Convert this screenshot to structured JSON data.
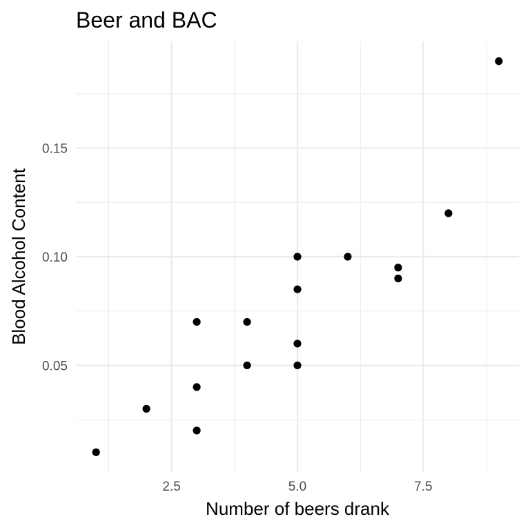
{
  "chart_data": {
    "type": "scatter",
    "title": "Beer and BAC",
    "xlabel": "Number of beers drank",
    "ylabel": "Blood Alcohol Content",
    "xlim": [
      0.6,
      9.4
    ],
    "ylim": [
      0.0009,
      0.1991
    ],
    "x_ticks": [
      2.5,
      5.0,
      7.5
    ],
    "x_tick_labels": [
      "2.5",
      "5.0",
      "7.5"
    ],
    "x_minor_ticks": [
      1.25,
      3.75,
      6.25,
      8.75
    ],
    "y_ticks": [
      0.05,
      0.1,
      0.15
    ],
    "y_tick_labels": [
      "0.05",
      "0.10",
      "0.15"
    ],
    "y_minor_ticks": [
      0.025,
      0.075,
      0.125,
      0.175
    ],
    "grid": true,
    "point_color": "#000000",
    "points": [
      {
        "x": 1,
        "y": 0.01
      },
      {
        "x": 2,
        "y": 0.03
      },
      {
        "x": 3,
        "y": 0.02
      },
      {
        "x": 3,
        "y": 0.04
      },
      {
        "x": 3,
        "y": 0.07
      },
      {
        "x": 4,
        "y": 0.05
      },
      {
        "x": 4,
        "y": 0.07
      },
      {
        "x": 5,
        "y": 0.05
      },
      {
        "x": 5,
        "y": 0.06
      },
      {
        "x": 5,
        "y": 0.085
      },
      {
        "x": 5,
        "y": 0.1
      },
      {
        "x": 6,
        "y": 0.1
      },
      {
        "x": 7,
        "y": 0.09
      },
      {
        "x": 7,
        "y": 0.095
      },
      {
        "x": 8,
        "y": 0.12
      },
      {
        "x": 9,
        "y": 0.19
      }
    ]
  }
}
